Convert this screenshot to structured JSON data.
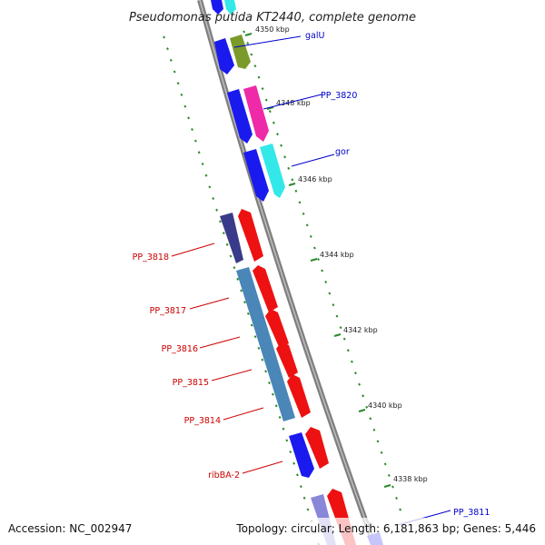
{
  "title": "Pseudomonas putida KT2440, complete genome",
  "footer": {
    "accession": "Accession: NC_002947",
    "topology": "Topology: circular; Length: 6,181,863 bp; Genes: 5,446"
  },
  "colors": {
    "backbone": "#888888",
    "tick": "#2a8a2a",
    "label_forward": "#0000cc",
    "label_reverse": "#cc0000"
  },
  "ticks": [
    {
      "label": "4350 kbp"
    },
    {
      "label": "4348 kbp"
    },
    {
      "label": "4346 kbp"
    },
    {
      "label": "4344 kbp"
    },
    {
      "label": "4342 kbp"
    },
    {
      "label": "4340 kbp"
    },
    {
      "label": "4338 kbp"
    }
  ],
  "gene_labels": [
    {
      "name": "galU",
      "color": "#0000cc"
    },
    {
      "name": "PP_3820",
      "color": "#0000cc"
    },
    {
      "name": "gor",
      "color": "#0000cc"
    },
    {
      "name": "PP_3818",
      "color": "#cc0000"
    },
    {
      "name": "PP_3817",
      "color": "#cc0000"
    },
    {
      "name": "PP_3816",
      "color": "#cc0000"
    },
    {
      "name": "PP_3815",
      "color": "#cc0000"
    },
    {
      "name": "PP_3814",
      "color": "#cc0000"
    },
    {
      "name": "ribBA-2",
      "color": "#cc0000"
    },
    {
      "name": "PP_3811",
      "color": "#0000cc"
    }
  ]
}
